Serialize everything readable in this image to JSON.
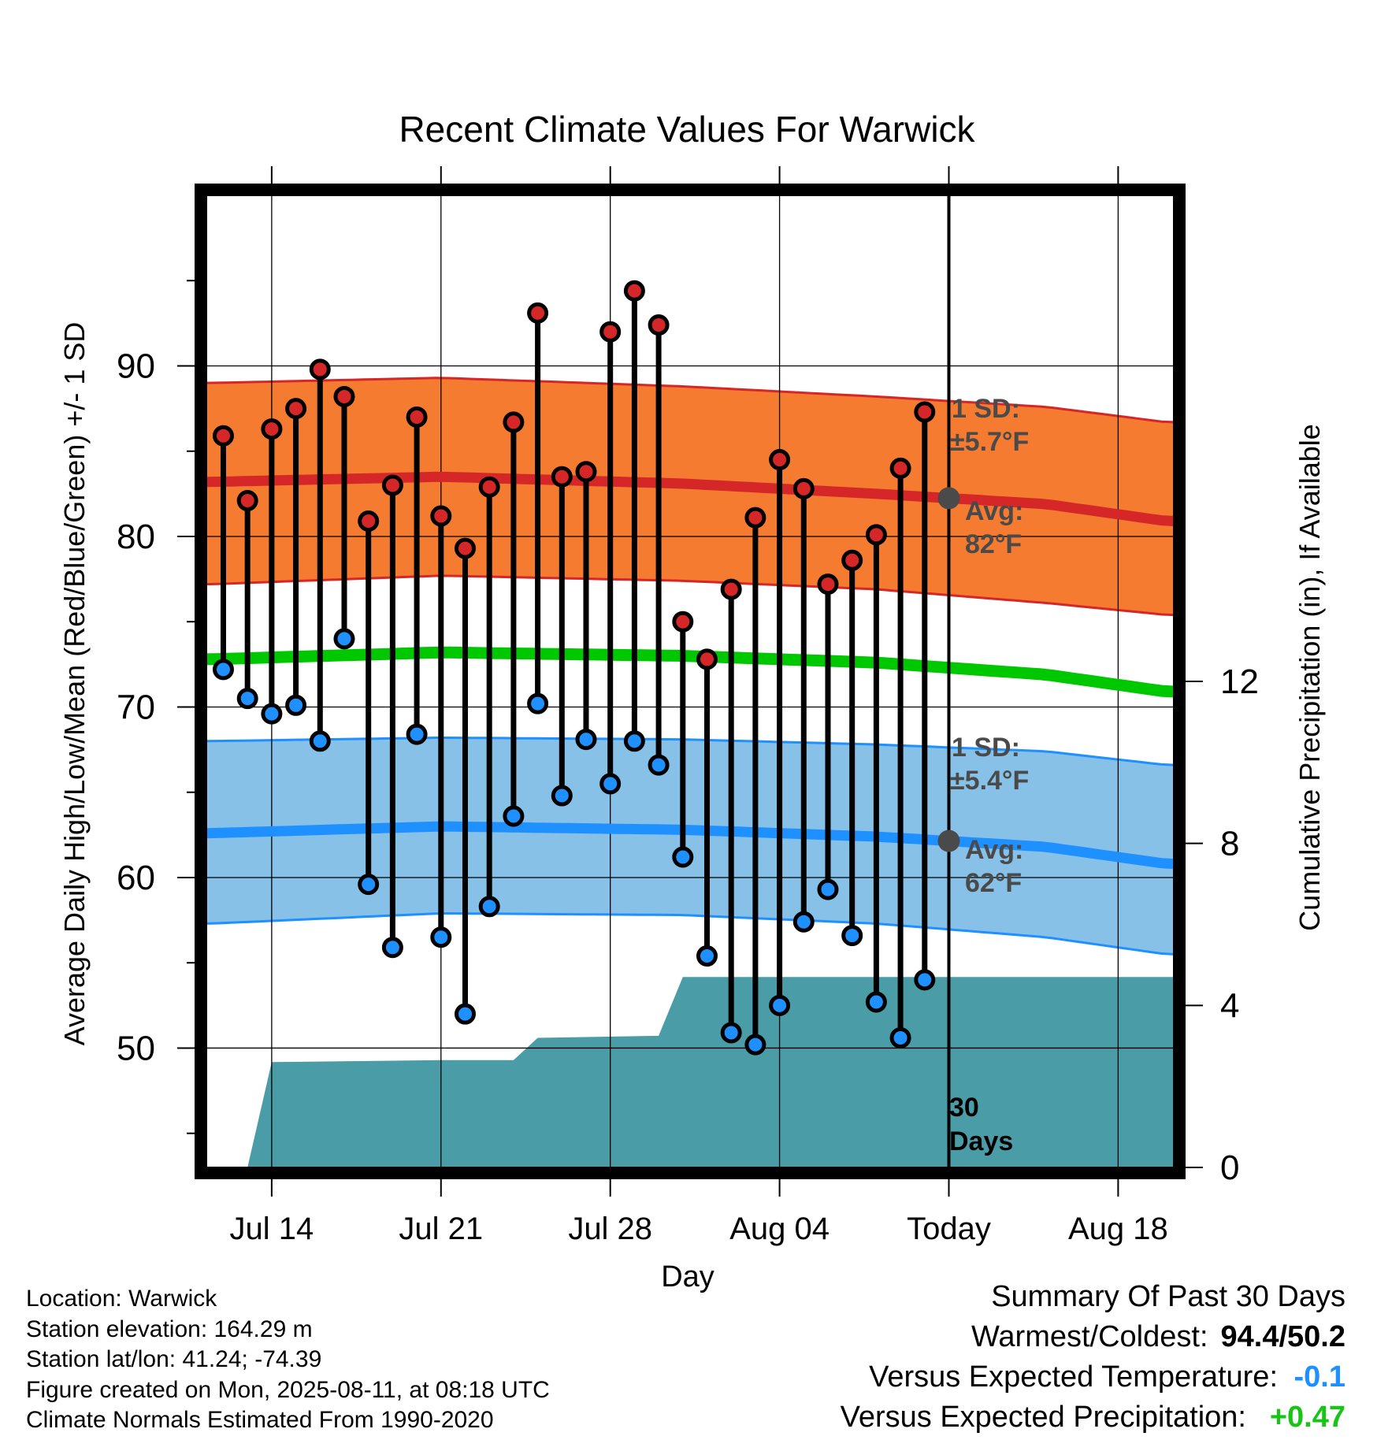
{
  "chart_data": {
    "type": "line",
    "title": "Recent Climate Values For Warwick",
    "xlabel": "Day",
    "ylabel": "Average Daily High/Low/Mean (Red/Blue/Green) +/- 1 SD",
    "y2label": "Cumulative Precipitation (in), If Available",
    "ylim": [
      43,
      100
    ],
    "y2lim": [
      0,
      24
    ],
    "y_ticks": [
      50,
      60,
      70,
      80,
      90
    ],
    "y2_ticks": [
      0,
      4,
      8,
      12
    ],
    "x_ticks": [
      "Jul 14",
      "Jul 21",
      "Jul 28",
      "Aug 04",
      "Today",
      "Aug 18"
    ],
    "x_tick_day": [
      3,
      10,
      17,
      24,
      31,
      38
    ],
    "x_range_day": [
      0.3,
      40.3
    ],
    "grid": true,
    "today_day": 31,
    "dates": [
      "Jul 12",
      "Jul 13",
      "Jul 14",
      "Jul 15",
      "Jul 16",
      "Jul 17",
      "Jul 18",
      "Jul 19",
      "Jul 20",
      "Jul 21",
      "Jul 22",
      "Jul 23",
      "Jul 24",
      "Jul 25",
      "Jul 26",
      "Jul 27",
      "Jul 28",
      "Jul 29",
      "Jul 30",
      "Jul 31",
      "Aug 01",
      "Aug 02",
      "Aug 03",
      "Aug 04",
      "Aug 05",
      "Aug 06",
      "Aug 07",
      "Aug 08",
      "Aug 09",
      "Aug 10"
    ],
    "highs": [
      85.9,
      82.1,
      86.3,
      87.5,
      89.8,
      88.2,
      80.9,
      83.0,
      87.0,
      81.2,
      79.3,
      82.9,
      86.7,
      93.1,
      83.5,
      83.8,
      92.0,
      94.4,
      92.4,
      75.0,
      72.8,
      76.9,
      81.1,
      84.5,
      82.8,
      77.2,
      78.6,
      80.1,
      84.0,
      87.3
    ],
    "lows": [
      72.2,
      70.5,
      69.6,
      70.1,
      68.0,
      74.0,
      59.6,
      55.9,
      68.4,
      56.5,
      52.0,
      58.3,
      63.6,
      70.2,
      64.8,
      68.1,
      65.5,
      68.0,
      66.6,
      61.2,
      55.4,
      50.9,
      50.2,
      52.5,
      57.4,
      59.3,
      56.6,
      52.7,
      50.6,
      54.0
    ],
    "normal_high": {
      "day": [
        0.5,
        10,
        20,
        28,
        35,
        40
      ],
      "avg": [
        83.2,
        83.5,
        83.1,
        82.5,
        81.9,
        80.9
      ],
      "upper": [
        89.0,
        89.3,
        88.8,
        88.2,
        87.6,
        86.7
      ],
      "lower": [
        77.2,
        77.7,
        77.4,
        76.9,
        76.1,
        75.4
      ]
    },
    "normal_mean": {
      "day": [
        0.5,
        10,
        20,
        28,
        35,
        40
      ],
      "avg": [
        72.8,
        73.2,
        73.0,
        72.6,
        71.9,
        70.9
      ]
    },
    "normal_low": {
      "day": [
        0.5,
        10,
        20,
        28,
        35,
        40
      ],
      "avg": [
        62.6,
        63.0,
        62.8,
        62.4,
        61.8,
        60.8
      ],
      "upper": [
        68.0,
        68.2,
        68.1,
        67.8,
        67.4,
        66.6
      ],
      "lower": [
        57.3,
        57.9,
        57.8,
        57.3,
        56.5,
        55.5
      ]
    },
    "precip": {
      "day": [
        2,
        3,
        10,
        13,
        14,
        19,
        20,
        40.3
      ],
      "cum": [
        0,
        2.6,
        2.65,
        2.65,
        3.2,
        3.25,
        4.7,
        4.7
      ]
    },
    "labels": {
      "high_sd": "1 SD:",
      "high_sd_val": "±5.7°F",
      "high_avg": "Avg:",
      "high_avg_val": "82°F",
      "low_sd": "1 SD:",
      "low_sd_val": "±5.4°F",
      "low_avg": "Avg:",
      "low_avg_val": "62°F",
      "days_num": "30",
      "days_word": "Days"
    },
    "colors": {
      "high_band": "#f47b30",
      "high_line": "#d62728",
      "mean_line": "#00c800",
      "low_band": "#87c1e8",
      "low_line": "#1e90ff",
      "precip": "#4a9ca6",
      "high_dot": "#d62728",
      "low_dot": "#1e90ff",
      "today_marker": "#4a4a4a"
    }
  },
  "footer": {
    "location": "Location: Warwick",
    "elevation": "Station elevation: 164.29 m",
    "latlon": "Station lat/lon: 41.24; -74.39",
    "created": "Figure created on Mon, 2025-08-11, at 08:18 UTC",
    "normals": "Climate Normals Estimated From 1990-2020"
  },
  "summary": {
    "title": "Summary Of Past 30 Days",
    "warm_cold_label": "Warmest/Coldest:",
    "warm_cold_value": "94.4/50.2",
    "temp_label": "Versus Expected Temperature:",
    "temp_value": "-0.1",
    "precip_label": "Versus Expected Precipitation:",
    "precip_value": "+0.47"
  }
}
